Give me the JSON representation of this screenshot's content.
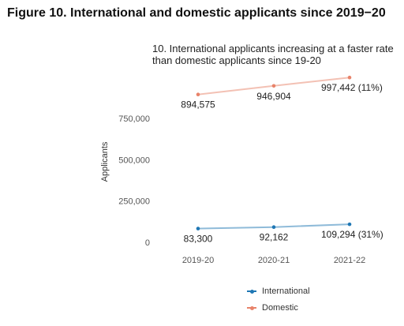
{
  "figure_title": "Figure 10. International and domestic applicants since 2019−20",
  "chart_data": {
    "type": "line",
    "title": "10. International applicants increasing at a faster rate\n than domestic applicants since 19-20",
    "xlabel": "",
    "ylabel": "Applicants",
    "categories": [
      "2019-20",
      "2020-21",
      "2021-22"
    ],
    "yticks": [
      0,
      250000,
      500000,
      750000
    ],
    "ytick_labels": [
      "0",
      "250,000",
      "500,000",
      "750,000"
    ],
    "ylim": [
      0,
      1000000
    ],
    "grid": false,
    "legend_position": "bottom",
    "series": [
      {
        "name": "International",
        "color": "#1f77b4",
        "values": [
          83300,
          92162,
          109294
        ],
        "labels": [
          "83,300",
          "92,162",
          "109,294 (31%)"
        ]
      },
      {
        "name": "Domestic",
        "color": "#e8836a",
        "values": [
          894575,
          946904,
          997442
        ],
        "labels": [
          "894,575",
          "946,904",
          "997,442 (11%)"
        ]
      }
    ]
  }
}
